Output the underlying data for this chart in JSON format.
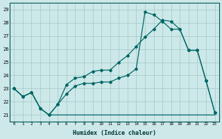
{
  "xlabel": "Humidex (Indice chaleur)",
  "background_color": "#cce8e8",
  "grid_color": "#aacccc",
  "line_color": "#006666",
  "xlim": [
    -0.5,
    23.5
  ],
  "ylim": [
    20.5,
    29.5
  ],
  "xticks": [
    0,
    1,
    2,
    3,
    4,
    5,
    6,
    7,
    8,
    9,
    10,
    11,
    12,
    13,
    14,
    15,
    16,
    17,
    18,
    19,
    20,
    21,
    22,
    23
  ],
  "yticks": [
    21,
    22,
    23,
    24,
    25,
    26,
    27,
    28,
    29
  ],
  "series1_x": [
    0,
    1,
    2,
    3,
    4,
    5,
    6,
    7,
    8,
    9,
    10,
    11,
    12,
    13,
    14,
    15,
    16,
    17,
    18,
    19,
    20,
    21,
    22,
    23
  ],
  "series1_y": [
    23.0,
    22.4,
    22.7,
    21.5,
    21.0,
    21.8,
    22.6,
    23.2,
    23.4,
    23.4,
    23.5,
    23.5,
    23.8,
    24.0,
    24.5,
    28.8,
    28.6,
    28.1,
    27.5,
    27.5,
    25.9,
    25.9,
    23.6,
    21.2
  ],
  "series2_x": [
    0,
    1,
    2,
    3,
    4,
    5,
    6,
    7,
    8,
    9,
    10,
    11,
    12,
    13,
    14,
    15,
    16,
    17,
    18,
    19,
    20,
    21,
    22,
    23
  ],
  "series2_y": [
    23.0,
    22.4,
    22.7,
    21.5,
    21.0,
    21.8,
    23.3,
    23.8,
    23.9,
    24.3,
    24.4,
    24.4,
    25.0,
    25.5,
    26.2,
    26.9,
    27.5,
    28.2,
    28.1,
    27.5,
    25.9,
    25.9,
    23.6,
    21.2
  ],
  "series3_x": [
    0,
    1,
    2,
    3,
    4,
    5,
    6,
    7,
    8,
    9,
    10,
    11,
    12,
    13,
    14,
    15,
    16,
    17,
    18,
    19,
    20,
    21,
    22,
    23
  ],
  "series3_y": [
    23.0,
    22.4,
    22.7,
    21.5,
    21.0,
    21.0,
    21.0,
    21.0,
    21.0,
    21.0,
    21.0,
    21.0,
    21.0,
    21.0,
    21.0,
    21.0,
    21.0,
    21.0,
    21.0,
    21.0,
    21.0,
    21.0,
    21.0,
    21.0
  ]
}
